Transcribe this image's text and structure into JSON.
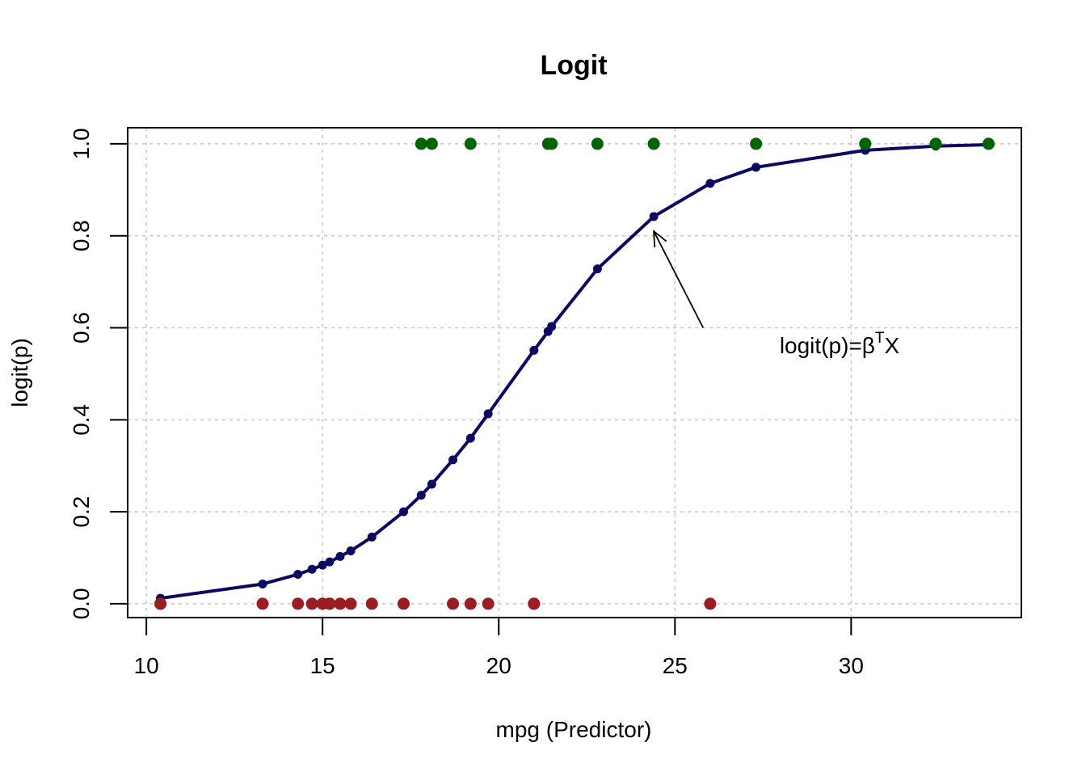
{
  "chart_data": {
    "type": "line",
    "title": "Logit",
    "xlabel": "mpg (Predictor)",
    "ylabel": "logit(p)",
    "xlim": [
      9.47,
      34.83
    ],
    "ylim": [
      -0.03,
      1.035
    ],
    "xticks": [
      10,
      15,
      20,
      25,
      30
    ],
    "yticks": [
      0.0,
      0.2,
      0.4,
      0.6,
      0.8,
      1.0
    ],
    "xtick_labels": [
      "10",
      "15",
      "20",
      "25",
      "30"
    ],
    "ytick_labels": [
      "0.0",
      "0.2",
      "0.4",
      "0.6",
      "0.8",
      "1.0"
    ],
    "grid": true,
    "series": [
      {
        "kind": "line",
        "color": "#0a0a64",
        "x": [
          10.4,
          13.3,
          14.3,
          14.7,
          15.0,
          15.2,
          15.5,
          15.8,
          16.4,
          17.3,
          17.8,
          18.1,
          18.7,
          19.2,
          19.7,
          21.0,
          21.4,
          21.5,
          22.8,
          24.4,
          26.0,
          27.3,
          30.4,
          32.4,
          33.9
        ],
        "y": [
          0.012,
          0.043,
          0.064,
          0.075,
          0.084,
          0.091,
          0.103,
          0.115,
          0.145,
          0.2,
          0.236,
          0.26,
          0.313,
          0.36,
          0.413,
          0.551,
          0.592,
          0.603,
          0.728,
          0.842,
          0.914,
          0.949,
          0.986,
          0.995,
          0.998
        ]
      },
      {
        "kind": "points",
        "color": "#006400",
        "x": [
          17.8,
          18.1,
          19.2,
          21.4,
          21.5,
          22.8,
          24.4,
          27.3,
          30.4,
          30.4,
          32.4,
          33.9
        ],
        "y": [
          1,
          1,
          1,
          1,
          1,
          1,
          1,
          1,
          1,
          1,
          1,
          1
        ]
      },
      {
        "kind": "points",
        "color": "#9b1c22",
        "x": [
          10.4,
          10.4,
          13.3,
          14.3,
          14.7,
          15.0,
          15.2,
          15.2,
          15.5,
          15.8,
          16.4,
          17.3,
          18.7,
          19.2,
          19.7,
          21.0,
          21.0,
          26.0
        ],
        "y": [
          0,
          0,
          0,
          0,
          0,
          0,
          0,
          0,
          0,
          0,
          0,
          0,
          0,
          0,
          0,
          0,
          0,
          0
        ]
      }
    ],
    "annotation": {
      "text_main": "logit(p)=β",
      "text_sup": "T",
      "text_end": "X",
      "label_x": 27.97,
      "label_y": 0.545,
      "arrow_from": [
        25.8,
        0.6
      ],
      "arrow_to": [
        24.4,
        0.81
      ]
    }
  }
}
